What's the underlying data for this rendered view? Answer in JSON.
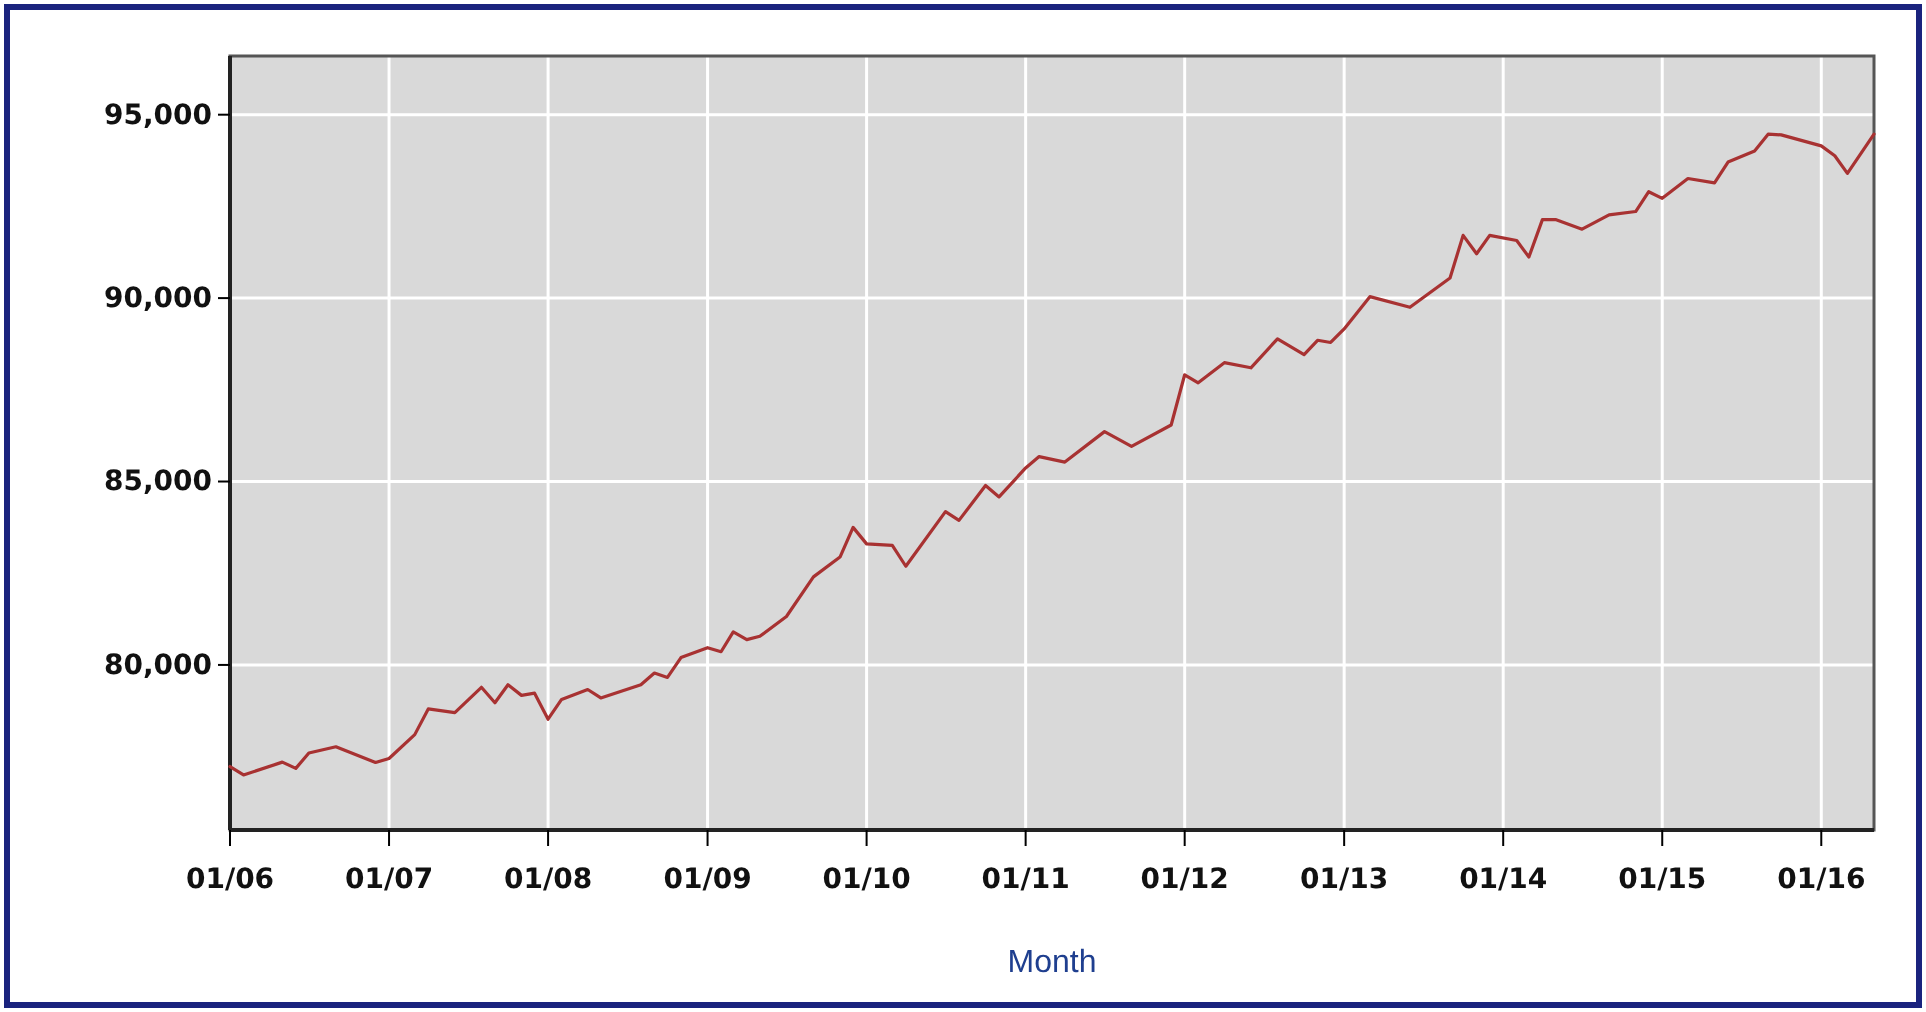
{
  "chart_data": {
    "type": "line",
    "xlabel": "Month",
    "x": [
      "2006-01",
      "2006-02",
      "2006-05",
      "2006-06",
      "2006-07",
      "2006-09",
      "2006-12",
      "2007-01",
      "2007-03",
      "2007-04",
      "2007-06",
      "2007-08",
      "2007-09",
      "2007-10",
      "2007-11",
      "2007-12",
      "2008-01",
      "2008-02",
      "2008-04",
      "2008-05",
      "2008-08",
      "2008-09",
      "2008-10",
      "2008-11",
      "2009-01",
      "2009-02",
      "2009-03",
      "2009-04",
      "2009-05",
      "2009-07",
      "2009-09",
      "2009-11",
      "2009-12",
      "2010-01",
      "2010-03",
      "2010-04",
      "2010-07",
      "2010-08",
      "2010-10",
      "2010-11",
      "2011-01",
      "2011-02",
      "2011-04",
      "2011-07",
      "2011-09",
      "2011-12",
      "2012-01",
      "2012-02",
      "2012-04",
      "2012-06",
      "2012-08",
      "2012-10",
      "2012-11",
      "2012-12",
      "2013-01",
      "2013-03",
      "2013-06",
      "2013-09",
      "2013-10",
      "2013-11",
      "2013-12",
      "2014-02",
      "2014-03",
      "2014-04",
      "2014-05",
      "2014-07",
      "2014-09",
      "2014-11",
      "2014-12",
      "2015-01",
      "2015-03",
      "2015-05",
      "2015-06",
      "2015-08",
      "2015-09",
      "2015-10",
      "2016-01",
      "2016-02",
      "2016-03",
      "2016-05"
    ],
    "series": [
      {
        "color": "#a83232",
        "values": [
          77230,
          77000,
          77350,
          77180,
          77600,
          77770,
          77340,
          77450,
          78100,
          78800,
          78700,
          79390,
          78970,
          79460,
          79170,
          79230,
          78520,
          79060,
          79330,
          79100,
          79460,
          79780,
          79660,
          80200,
          80470,
          80360,
          80900,
          80690,
          80780,
          81320,
          82400,
          82940,
          83750,
          83300,
          83260,
          82690,
          84180,
          83940,
          84890,
          84580,
          85370,
          85680,
          85530,
          86360,
          85960,
          86540,
          87910,
          87690,
          88240,
          88100,
          88890,
          88460,
          88850,
          88790,
          89160,
          90040,
          89750,
          90550,
          91710,
          91210,
          91710,
          91570,
          91120,
          92140,
          92140,
          91880,
          92270,
          92360,
          92900,
          92720,
          93260,
          93140,
          93710,
          94010,
          94470,
          94450,
          94150,
          93880,
          93400,
          94470
        ]
      }
    ],
    "xlim": [
      "2006-01",
      "2016-05"
    ],
    "xticks": [
      {
        "value": "2006-01",
        "label": "01/06"
      },
      {
        "value": "2007-01",
        "label": "01/07"
      },
      {
        "value": "2008-01",
        "label": "01/08"
      },
      {
        "value": "2009-01",
        "label": "01/09"
      },
      {
        "value": "2010-01",
        "label": "01/10"
      },
      {
        "value": "2011-01",
        "label": "01/11"
      },
      {
        "value": "2012-01",
        "label": "01/12"
      },
      {
        "value": "2013-01",
        "label": "01/13"
      },
      {
        "value": "2014-01",
        "label": "01/14"
      },
      {
        "value": "2015-01",
        "label": "01/15"
      },
      {
        "value": "2016-01",
        "label": "01/16"
      }
    ],
    "ylim": [
      75500,
      96600
    ],
    "yticks": [
      {
        "value": 80000,
        "label": "80,000"
      },
      {
        "value": 85000,
        "label": "85,000"
      },
      {
        "value": 90000,
        "label": "90,000"
      },
      {
        "value": 95000,
        "label": "95,000"
      }
    ],
    "grid": true,
    "marker": "none",
    "line_style": "solid"
  }
}
